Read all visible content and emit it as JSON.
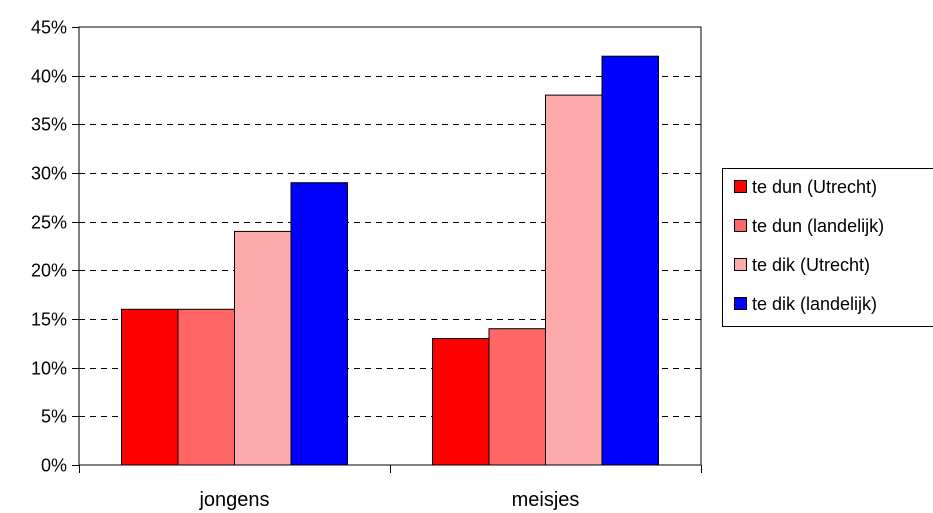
{
  "chart_data": {
    "type": "bar",
    "categories": [
      "jongens",
      "meisjes"
    ],
    "series": [
      {
        "name": "te dun (Utrecht)",
        "color": "#ff0000",
        "values": [
          16,
          13
        ]
      },
      {
        "name": "te dun (landelijk)",
        "color": "#ff6666",
        "values": [
          16,
          14
        ]
      },
      {
        "name": "te dik (Utrecht)",
        "color": "#ffaaaa",
        "values": [
          24,
          38
        ]
      },
      {
        "name": "te dik (landelijk)",
        "color": "#0000ff",
        "values": [
          29,
          42
        ]
      }
    ],
    "ylim": [
      0,
      45
    ],
    "yticks": [
      0,
      5,
      10,
      15,
      20,
      25,
      30,
      35,
      40,
      45
    ],
    "ytick_labels": [
      "0%",
      "5%",
      "10%",
      "15%",
      "20%",
      "25%",
      "30%",
      "35%",
      "40%",
      "45%"
    ],
    "grid": "horizontal dashed",
    "legend_position": "right",
    "title": "",
    "xlabel": "",
    "ylabel": ""
  }
}
